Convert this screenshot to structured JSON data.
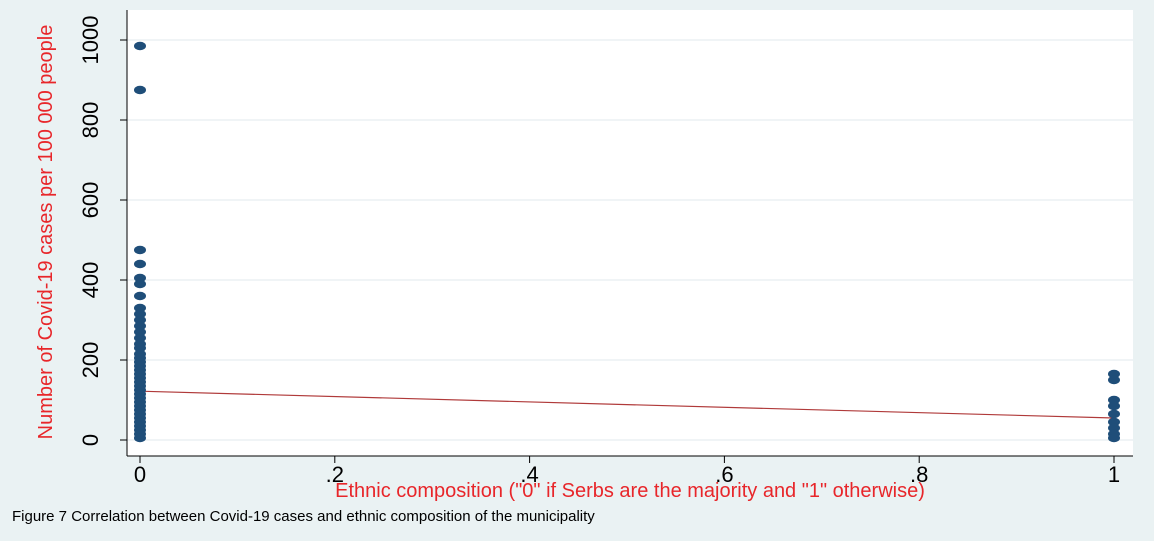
{
  "caption": "Figure 7 Correlation between Covid-19 cases and ethnic composition of the municipality",
  "colors": {
    "background": "#eaf2f3",
    "plot_background": "#ffffff",
    "gridline": "#e6eef0",
    "point": "#1f4e79",
    "fit_line": "#b03a3a",
    "axis_title": "#e8262a"
  },
  "chart_data": {
    "type": "scatter",
    "title": "",
    "xlabel": "Ethnic composition (\"0\" if Serbs are the majority and \"1\" otherwise)",
    "ylabel": "Number of Covid-19 cases per 100 000 people",
    "xlim": [
      0,
      1
    ],
    "ylim": [
      0,
      1000
    ],
    "xticks": [
      0,
      0.2,
      0.4,
      0.6,
      0.8,
      1
    ],
    "xtick_labels": [
      "0",
      ".2",
      ".4",
      ".6",
      ".8",
      "1"
    ],
    "yticks": [
      0,
      200,
      400,
      600,
      800,
      1000
    ],
    "ytick_labels": [
      "0",
      "200",
      "400",
      "600",
      "800",
      "1000"
    ],
    "grid": true,
    "series": [
      {
        "points": [
          [
            0,
            985
          ],
          [
            0,
            875
          ],
          [
            0,
            475
          ],
          [
            0,
            440
          ],
          [
            0,
            405
          ],
          [
            0,
            390
          ],
          [
            0,
            360
          ],
          [
            0,
            330
          ],
          [
            0,
            315
          ],
          [
            0,
            300
          ],
          [
            0,
            285
          ],
          [
            0,
            270
          ],
          [
            0,
            255
          ],
          [
            0,
            240
          ],
          [
            0,
            230
          ],
          [
            0,
            215
          ],
          [
            0,
            205
          ],
          [
            0,
            195
          ],
          [
            0,
            185
          ],
          [
            0,
            175
          ],
          [
            0,
            165
          ],
          [
            0,
            155
          ],
          [
            0,
            145
          ],
          [
            0,
            135
          ],
          [
            0,
            125
          ],
          [
            0,
            115
          ],
          [
            0,
            105
          ],
          [
            0,
            95
          ],
          [
            0,
            85
          ],
          [
            0,
            75
          ],
          [
            0,
            65
          ],
          [
            0,
            55
          ],
          [
            0,
            45
          ],
          [
            0,
            35
          ],
          [
            0,
            25
          ],
          [
            0,
            15
          ],
          [
            0,
            5
          ],
          [
            1,
            165
          ],
          [
            1,
            150
          ],
          [
            1,
            100
          ],
          [
            1,
            85
          ],
          [
            1,
            65
          ],
          [
            1,
            45
          ],
          [
            1,
            30
          ],
          [
            1,
            15
          ],
          [
            1,
            5
          ]
        ]
      }
    ],
    "fit_line": {
      "x": [
        0,
        1
      ],
      "y": [
        122,
        55
      ]
    }
  }
}
